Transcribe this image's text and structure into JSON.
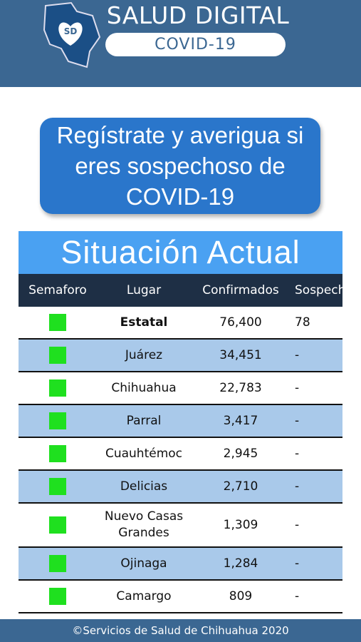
{
  "header": {
    "logo_text": "SD",
    "title": "SALUD DIGITAL",
    "subtitle": "COVID-19"
  },
  "register_button": "Regístrate y averigua si eres sospechoso de COVID-19",
  "table": {
    "title": "Situación Actual",
    "columns": [
      "Semaforo",
      "Lugar",
      "Confirmados",
      "Sospechosos"
    ],
    "rows": [
      [
        "Estatal",
        "76,400",
        "78"
      ],
      [
        "Juárez",
        "34,451",
        "-"
      ],
      [
        "Chihuahua",
        "22,783",
        "-"
      ],
      [
        "Parral",
        "3,417",
        "-"
      ],
      [
        "Cuauhtémoc",
        "2,945",
        "-"
      ],
      [
        "Delicias",
        "2,710",
        "-"
      ],
      [
        "Nuevo Casas Grandes",
        "1,309",
        "-"
      ],
      [
        "Ojinaga",
        "1,284",
        "-"
      ],
      [
        "Camargo",
        "809",
        "-"
      ]
    ]
  },
  "footer": "©Servicios de Salud de Chihuahua 2020"
}
